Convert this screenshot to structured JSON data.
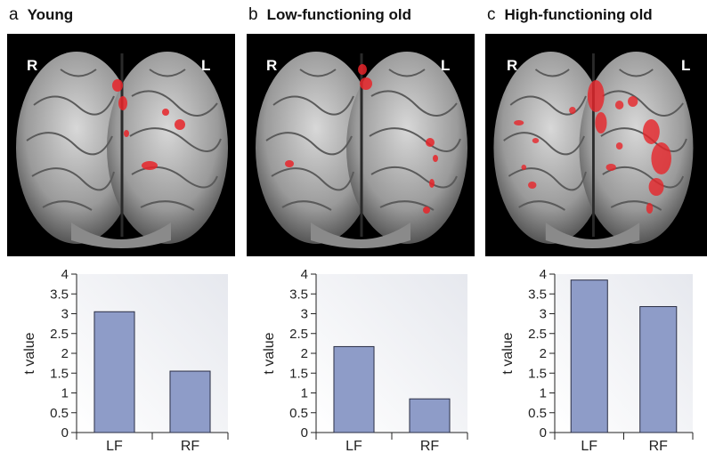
{
  "panels": [
    {
      "letter": "a",
      "title": "Young",
      "side_right": "R",
      "side_left": "L"
    },
    {
      "letter": "b",
      "title": "Low-functioning old",
      "side_right": "R",
      "side_left": "L"
    },
    {
      "letter": "c",
      "title": "High-functioning old",
      "side_right": "R",
      "side_left": "L"
    }
  ],
  "colors": {
    "bar": "#8e9cc8",
    "bar_stroke": "#2b2f45",
    "activation": "#e8252a",
    "brain_bg": "#000000"
  },
  "chart_data": [
    {
      "type": "bar",
      "categories": [
        "LF",
        "RF"
      ],
      "values": [
        3.05,
        1.55
      ],
      "ylabel": "t value",
      "ylim": [
        0,
        4
      ],
      "yticks": [
        "0",
        "0.5",
        "1",
        "1.5",
        "2",
        "2.5",
        "3",
        "3.5",
        "4"
      ],
      "grid": false
    },
    {
      "type": "bar",
      "categories": [
        "LF",
        "RF"
      ],
      "values": [
        2.17,
        0.85
      ],
      "ylabel": "t value",
      "ylim": [
        0,
        4
      ],
      "yticks": [
        "0",
        "0.5",
        "1",
        "1.5",
        "2",
        "2.5",
        "3",
        "3.5",
        "4"
      ],
      "grid": false
    },
    {
      "type": "bar",
      "categories": [
        "LF",
        "RF"
      ],
      "values": [
        3.85,
        3.18
      ],
      "ylabel": "t value",
      "ylim": [
        0,
        4
      ],
      "yticks": [
        "0",
        "0.5",
        "1",
        "1.5",
        "2",
        "2.5",
        "3",
        "3.5",
        "4"
      ],
      "grid": false
    }
  ]
}
